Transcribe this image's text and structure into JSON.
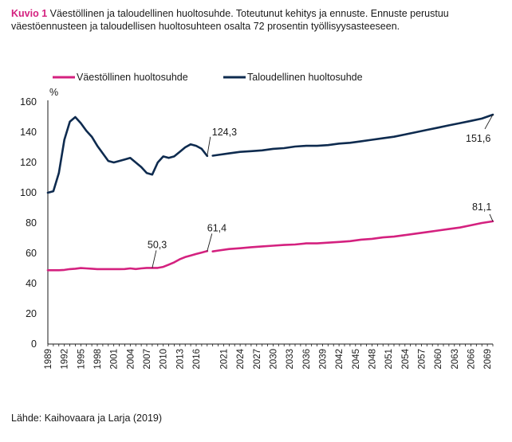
{
  "caption": {
    "figure_label": "Kuvio 1",
    "text": " Väestöllinen ja taloudellinen huoltosuhde. Toteutunut kehitys ja ennuste. Ennuste perustuu väestöennusteen ja taloudellisen huoltosuhteen osalta 72 prosentin työllisyysasteeseen."
  },
  "source": "Lähde: Kaihovaara ja Larja (2019)",
  "chart_data": {
    "type": "line",
    "title": "Väestöllinen ja taloudellinen huoltosuhde. Toteutunut kehitys ja ennuste.",
    "ylabel": "%",
    "xlabel": "",
    "ylim": [
      0,
      160
    ],
    "yticks": [
      0,
      20,
      40,
      60,
      80,
      100,
      120,
      140,
      160
    ],
    "xlim": [
      1989,
      2070
    ],
    "xticks": [
      "1989",
      "1992",
      "1995",
      "1998",
      "2001",
      "2004",
      "2007",
      "2010",
      "2013",
      "2016",
      "2021",
      "2024",
      "2027",
      "2030",
      "2033",
      "2036",
      "2039",
      "2042",
      "2045",
      "2048",
      "2051",
      "2054",
      "2057",
      "2060",
      "2063",
      "2066",
      "2069"
    ],
    "legend_position": "top",
    "colors": {
      "vaesto": "#d4217f",
      "talous": "#0e2b4f"
    },
    "series": [
      {
        "name": "Väestöllinen huoltosuhde",
        "color": "#d4217f",
        "segments": [
          {
            "x": [
              1989,
              1990,
              1991,
              1992,
              1993,
              1994,
              1995,
              1996,
              1997,
              1998,
              1999,
              2000,
              2001,
              2002,
              2003,
              2004,
              2005,
              2006,
              2007,
              2008,
              2009,
              2010,
              2011,
              2012,
              2013,
              2014,
              2015,
              2016,
              2017,
              2018
            ],
            "y": [
              48.8,
              48.8,
              48.8,
              49.0,
              49.5,
              49.8,
              50.2,
              50.0,
              49.8,
              49.5,
              49.5,
              49.5,
              49.5,
              49.5,
              49.6,
              50.0,
              49.6,
              50.0,
              50.3,
              50.3,
              50.3,
              51.0,
              52.5,
              54.0,
              56.0,
              57.5,
              58.5,
              59.5,
              60.5,
              61.4
            ]
          },
          {
            "x": [
              2019,
              2020,
              2022,
              2024,
              2026,
              2028,
              2030,
              2032,
              2034,
              2036,
              2038,
              2040,
              2042,
              2044,
              2046,
              2048,
              2050,
              2052,
              2054,
              2056,
              2058,
              2060,
              2062,
              2064,
              2066,
              2068,
              2070
            ],
            "y": [
              61.2,
              61.8,
              62.8,
              63.3,
              64.0,
              64.5,
              65.0,
              65.5,
              65.8,
              66.5,
              66.5,
              67.0,
              67.5,
              68.0,
              69.0,
              69.5,
              70.5,
              71.0,
              72.0,
              73.0,
              74.0,
              75.0,
              76.0,
              77.0,
              78.5,
              80.0,
              81.1
            ]
          }
        ]
      },
      {
        "name": "Taloudellinen huoltosuhde",
        "color": "#0e2b4f",
        "segments": [
          {
            "x": [
              1989,
              1990,
              1991,
              1992,
              1993,
              1994,
              1995,
              1996,
              1997,
              1998,
              1999,
              2000,
              2001,
              2002,
              2003,
              2004,
              2005,
              2006,
              2007,
              2008,
              2009,
              2010,
              2011,
              2012,
              2013,
              2014,
              2015,
              2016,
              2017,
              2018
            ],
            "y": [
              100,
              101,
              113,
              135,
              147,
              150,
              146,
              141,
              137,
              131,
              126,
              121,
              120,
              121,
              122,
              123,
              120,
              117,
              113,
              112,
              120,
              124,
              123,
              124,
              127,
              130,
              132,
              131,
              129,
              124.3
            ]
          },
          {
            "x": [
              2019,
              2020,
              2022,
              2024,
              2026,
              2028,
              2030,
              2032,
              2034,
              2036,
              2038,
              2040,
              2042,
              2044,
              2046,
              2048,
              2050,
              2052,
              2054,
              2056,
              2058,
              2060,
              2062,
              2064,
              2066,
              2068,
              2070
            ],
            "y": [
              124.5,
              125.0,
              126.0,
              127.0,
              127.5,
              128.0,
              129.0,
              129.5,
              130.5,
              131.0,
              131.0,
              131.5,
              132.5,
              133.0,
              134.0,
              135.0,
              136.0,
              137.0,
              138.5,
              140.0,
              141.5,
              143.0,
              144.5,
              146.0,
              147.5,
              149.0,
              151.6
            ]
          }
        ]
      }
    ],
    "annotations": [
      {
        "text": "124,3",
        "series": "Taloudellinen huoltosuhde",
        "x": 2018,
        "y": 124.3
      },
      {
        "text": "151,6",
        "series": "Taloudellinen huoltosuhde",
        "x": 2070,
        "y": 151.6
      },
      {
        "text": "50,3",
        "series": "Väestöllinen huoltosuhde",
        "x": 2008,
        "y": 50.3
      },
      {
        "text": "61,4",
        "series": "Väestöllinen huoltosuhde",
        "x": 2018,
        "y": 61.4
      },
      {
        "text": "81,1",
        "series": "Väestöllinen huoltosuhde",
        "x": 2070,
        "y": 81.1
      }
    ]
  }
}
